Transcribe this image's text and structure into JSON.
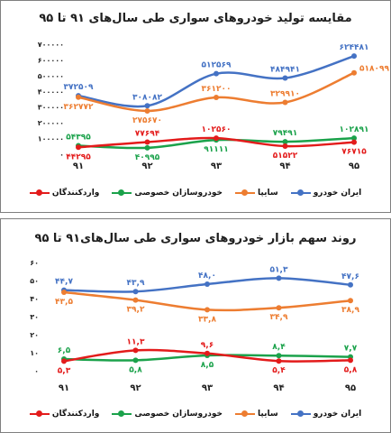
{
  "chart_data": [
    {
      "type": "line",
      "title": "مقایسه تولید خودروهای سواری طی سال‌های ۹۱ تا ۹۵",
      "categories": [
        "۹۱",
        "۹۲",
        "۹۳",
        "۹۴",
        "۹۵"
      ],
      "ylim": [
        0,
        700000
      ],
      "yticks": [
        0,
        100000,
        200000,
        300000,
        400000,
        500000,
        600000,
        700000
      ],
      "ytick_labels": [
        "۰",
        "۱۰۰۰۰۰",
        "۲۰۰۰۰۰",
        "۳۰۰۰۰۰",
        "۴۰۰۰۰۰",
        "۵۰۰۰۰۰",
        "۶۰۰۰۰۰",
        "۷۰۰۰۰۰"
      ],
      "grid": false,
      "legend": "bottom",
      "series": [
        {
          "name": "ایران خودرو",
          "color": "#4472c4",
          "values": [
            372509,
            308082,
            512569,
            484941,
            624481
          ],
          "labels": [
            "۳۷۲۵۰۹",
            "۳۰۸۰۸۲",
            "۵۱۲۵۶۹",
            "۴۸۴۹۴۱",
            "۶۲۴۴۸۱"
          ],
          "label_pos": [
            "above",
            "above",
            "above",
            "above",
            "above"
          ]
        },
        {
          "name": "سایپا",
          "color": "#ed7d31",
          "values": [
            362772,
            275670,
            361200,
            329910,
            518099
          ],
          "labels": [
            "۳۶۲۷۷۲",
            "۲۷۵۶۷۰",
            "۳۶۱۲۰۰",
            "۳۲۹۹۱۰",
            "۵۱۸۰۹۹"
          ],
          "label_pos": [
            "below",
            "below",
            "above",
            "above",
            "right"
          ]
        },
        {
          "name": "خودروسازان خصوصی",
          "color": "#1ba24b",
          "values": [
            54395,
            40995,
            91111,
            79491,
            102891
          ],
          "labels": [
            "۵۴۳۹۵",
            "۴۰۹۹۵",
            "۹۱۱۱۱",
            "۷۹۴۹۱",
            "۱۰۲۸۹۱"
          ],
          "label_pos": [
            "above",
            "below",
            "below",
            "above",
            "above"
          ]
        },
        {
          "name": "واردکنندگان",
          "color": "#e31b1b",
          "values": [
            44295,
            77694,
            102560,
            51522,
            76715
          ],
          "labels": [
            "۴۴۲۹۵",
            "۷۷۶۹۴",
            "۱۰۲۵۶۰",
            "۵۱۵۲۲",
            "۷۶۷۱۵"
          ],
          "label_pos": [
            "below",
            "above",
            "above",
            "below",
            "below"
          ]
        }
      ]
    },
    {
      "type": "line",
      "title": "روند سهم بازار خودروهای سواری طی سال‌های۹۱ تا ۹۵",
      "categories": [
        "۹۱",
        "۹۲",
        "۹۳",
        "۹۴",
        "۹۵"
      ],
      "ylim": [
        0,
        60
      ],
      "yticks": [
        0,
        10,
        20,
        30,
        40,
        50,
        60
      ],
      "ytick_labels": [
        "۰",
        "۱۰",
        "۲۰",
        "۳۰",
        "۴۰",
        "۵۰",
        "۶۰"
      ],
      "grid": false,
      "legend": "bottom",
      "series": [
        {
          "name": "ایران خودرو",
          "color": "#4472c4",
          "values": [
            44.7,
            43.9,
            48.0,
            51.3,
            47.6
          ],
          "labels": [
            "۴۴,۷",
            "۴۳,۹",
            "۴۸,۰",
            "۵۱,۳",
            "۴۷,۶"
          ],
          "label_pos": [
            "above",
            "above",
            "above",
            "above",
            "above"
          ]
        },
        {
          "name": "سایپا",
          "color": "#ed7d31",
          "values": [
            43.5,
            39.2,
            33.8,
            34.9,
            38.9
          ],
          "labels": [
            "۴۳,۵",
            "۳۹,۲",
            "۳۳,۸",
            "۳۴,۹",
            "۳۸,۹"
          ],
          "label_pos": [
            "below",
            "below",
            "below",
            "below",
            "below"
          ]
        },
        {
          "name": "خودروسازان خصوصی",
          "color": "#1ba24b",
          "values": [
            6.5,
            5.8,
            8.5,
            8.4,
            7.7
          ],
          "labels": [
            "۶,۵",
            "۵,۸",
            "۸,۵",
            "۸,۴",
            "۷,۷"
          ],
          "label_pos": [
            "above",
            "below",
            "below",
            "above",
            "above"
          ]
        },
        {
          "name": "واردکنندگان",
          "color": "#e31b1b",
          "values": [
            5.3,
            11.3,
            9.6,
            5.4,
            5.8
          ],
          "labels": [
            "۵,۳",
            "۱۱,۳",
            "۹,۶",
            "۵,۴",
            "۵,۸"
          ],
          "label_pos": [
            "below",
            "above",
            "above",
            "below",
            "below"
          ]
        }
      ]
    }
  ]
}
